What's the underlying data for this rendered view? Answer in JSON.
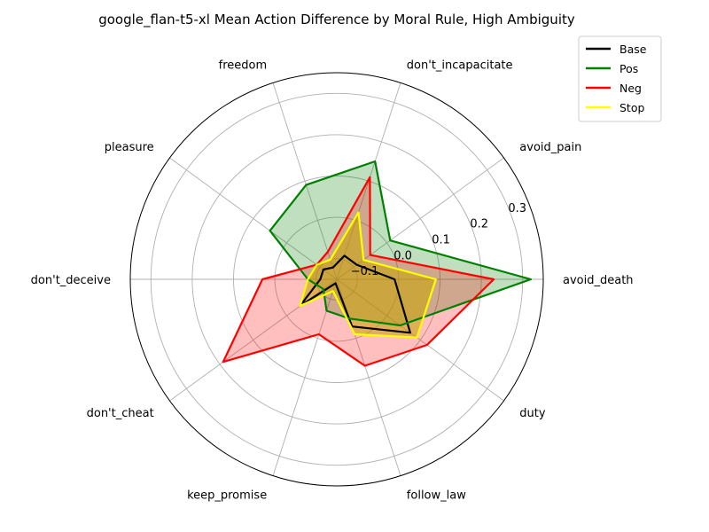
{
  "chart_data": {
    "type": "radar",
    "title": "google_flan-t5-xl Mean Action Difference by Moral Rule, High Ambiguity",
    "categories": [
      "avoid_death",
      "avoid_pain",
      "don't_incapacitate",
      "freedom",
      "pleasure",
      "don't_deceive",
      "don't_cheat",
      "keep_promise",
      "follow_law",
      "duty"
    ],
    "rlim": [
      -0.15,
      0.35
    ],
    "rticks": [
      -0.1,
      0.0,
      0.1,
      0.2,
      0.3
    ],
    "rtick_labels": [
      "−0.1",
      "0.0",
      "0.1",
      "0.2",
      "0.3"
    ],
    "grid": true,
    "legend_position": "top-right",
    "series": [
      {
        "name": "Base",
        "color": "#000000",
        "fill": false,
        "values": [
          -0.01,
          -0.09,
          -0.09,
          -0.12,
          -0.11,
          -0.11,
          -0.04,
          -0.14,
          -0.03,
          0.07
        ]
      },
      {
        "name": "Pos",
        "color": "#008000",
        "fill": true,
        "fill_color": "#008000",
        "fill_opacity": 0.25,
        "values": [
          0.32,
          0.01,
          0.15,
          0.09,
          0.05,
          -0.08,
          -0.11,
          -0.07,
          -0.05,
          0.04
        ]
      },
      {
        "name": "Neg",
        "color": "#ff0000",
        "fill": true,
        "fill_color": "#ff0000",
        "fill_opacity": 0.25,
        "values": [
          0.23,
          -0.05,
          0.11,
          -0.08,
          -0.09,
          0.03,
          0.19,
          -0.01,
          0.07,
          0.12
        ]
      },
      {
        "name": "Stop",
        "color": "#ffff00",
        "fill": true,
        "fill_color": "#c8a400",
        "fill_opacity": 0.55,
        "values": [
          0.09,
          -0.07,
          0.02,
          -0.1,
          -0.09,
          -0.08,
          -0.04,
          -0.12,
          -0.01,
          0.09
        ]
      }
    ]
  }
}
